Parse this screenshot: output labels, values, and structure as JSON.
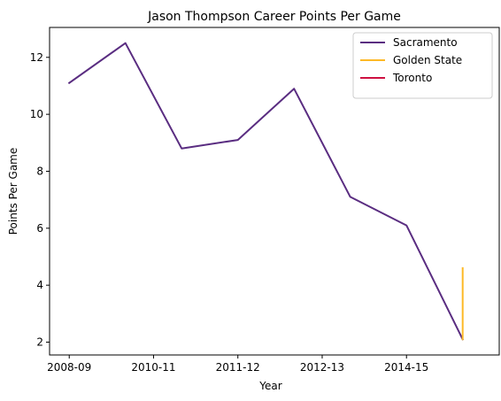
{
  "chart_data": {
    "type": "line",
    "title": "Jason Thompson  Career Points Per Game",
    "xlabel": "Year",
    "ylabel": "Points Per Game",
    "x_tick_labels": [
      "2008-09",
      "2010-11",
      "2011-12",
      "2012-13",
      "2014-15"
    ],
    "y_ticks": [
      2,
      4,
      6,
      8,
      10,
      12
    ],
    "ylim": [
      1.55,
      13.05
    ],
    "grid": false,
    "legend_position": "top-right",
    "series": [
      {
        "name": "Sacramento",
        "color": "#5a2d81",
        "points": [
          {
            "x": 0,
            "y": 11.1
          },
          {
            "x": 1,
            "y": 12.5
          },
          {
            "x": 2,
            "y": 8.8
          },
          {
            "x": 3,
            "y": 9.1
          },
          {
            "x": 4,
            "y": 10.9
          },
          {
            "x": 5,
            "y": 7.1
          },
          {
            "x": 6,
            "y": 6.1
          },
          {
            "x": 7,
            "y": 2.1
          }
        ]
      },
      {
        "name": "Golden State",
        "color": "#fdb927",
        "points": [
          {
            "x": 7,
            "y": 2.1
          },
          {
            "x": 7,
            "y": 4.6
          }
        ]
      },
      {
        "name": "Toronto",
        "color": "#ce1141",
        "points": []
      }
    ]
  }
}
